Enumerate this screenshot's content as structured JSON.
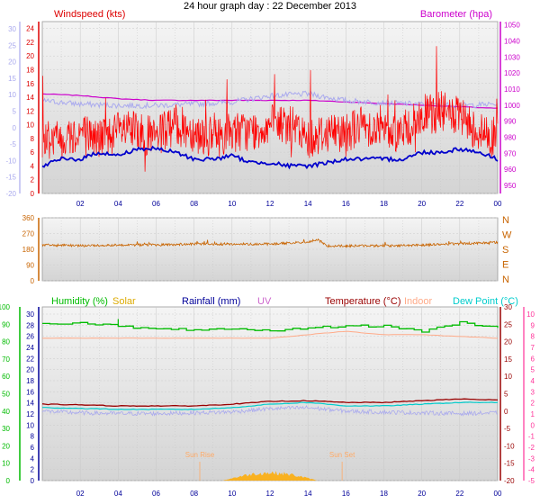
{
  "title": "24 hour graph day : 22 December 2013",
  "colors": {
    "wind": "#dd0000",
    "baro": "#cc00cc",
    "dir": "#c86400",
    "humidity": "#00bb00",
    "solar": "#ffaa00",
    "rain": "#000099",
    "uv": "#cc66cc",
    "temp": "#990000",
    "indoor": "#ffaa88",
    "dew": "#00cccc",
    "lavender": "#aaaaee",
    "gust": "#ff0000",
    "avg": "#0000cc",
    "pink": "#ff3399"
  },
  "labels": {
    "wind": "Windspeed (kts)",
    "baro": "Barometer (hpa)",
    "humidity": "Humidity (%)",
    "solar": "Solar",
    "rain": "Rainfall (mm)",
    "uv": "UV",
    "temp": "Temperature (°C)",
    "indoor": "Indoor",
    "dew": "Dew Point (°C)",
    "sunrise": "Sun Rise",
    "sunset": "Sun Set"
  },
  "chart_data": [
    {
      "type": "line",
      "panel": "wind-barometer",
      "x_ticks": [
        "02",
        "04",
        "06",
        "08",
        "10",
        "12",
        "14",
        "16",
        "18",
        "20",
        "22",
        "00"
      ],
      "axes": {
        "wind_kts": {
          "ticks": [
            0,
            2,
            4,
            6,
            8,
            10,
            12,
            14,
            16,
            18,
            20,
            22,
            24
          ],
          "ylim": [
            0,
            25
          ]
        },
        "outer_left": {
          "ticks": [
            -20,
            -15,
            -10,
            -5,
            0,
            5,
            10,
            15,
            20,
            25,
            30
          ]
        },
        "barometer_hpa": {
          "ticks": [
            950,
            960,
            970,
            980,
            990,
            1000,
            1010,
            1020,
            1030,
            1040,
            1050
          ],
          "ylim": [
            945,
            1052
          ]
        }
      },
      "series": [
        {
          "name": "Windspeed (kts)",
          "key": "gust",
          "x": [
            0,
            1,
            2,
            3,
            4,
            5,
            6,
            7,
            8,
            9,
            10,
            11,
            12,
            13,
            14,
            15,
            16,
            17,
            18,
            19,
            20,
            21,
            22,
            23,
            24
          ],
          "y": [
            8,
            8,
            9,
            8,
            9,
            9,
            8,
            10,
            9,
            8,
            9,
            9,
            10,
            10,
            8,
            9,
            9,
            10,
            9,
            9,
            11,
            12,
            11,
            9,
            8
          ]
        },
        {
          "name": "avg",
          "key": "avg",
          "x": [
            0,
            1,
            2,
            3,
            4,
            5,
            6,
            7,
            8,
            9,
            10,
            11,
            12,
            13,
            14,
            15,
            16,
            17,
            18,
            19,
            20,
            21,
            22,
            23,
            24
          ],
          "y": [
            4,
            5,
            5,
            6,
            5.5,
            6.5,
            6.5,
            6,
            5,
            5,
            5.5,
            4.5,
            4.5,
            4,
            4,
            4.5,
            5,
            5,
            5,
            5,
            6,
            6,
            6.5,
            6,
            5
          ]
        },
        {
          "name": "Barometer (hpa)",
          "key": "baro",
          "x": [
            0,
            2,
            4,
            6,
            8,
            10,
            12,
            14,
            16,
            18,
            20,
            22,
            24
          ],
          "y": [
            1007,
            1006,
            1004,
            1003,
            1003,
            1003,
            1003,
            1003,
            1002,
            1001,
            1000,
            999,
            998
          ]
        },
        {
          "name": "lavender",
          "key": "lavender",
          "x": [
            0,
            2,
            4,
            6,
            8,
            10,
            12,
            14,
            16,
            18,
            20,
            22,
            24
          ],
          "y": [
            13.5,
            13,
            12.8,
            12.8,
            13,
            13.3,
            14.2,
            14.5,
            13.5,
            13.2,
            13,
            12.8,
            13
          ]
        }
      ]
    },
    {
      "type": "line",
      "panel": "wind-direction",
      "axes": {
        "dir": {
          "ticks": [
            0,
            90,
            180,
            270,
            360
          ],
          "ylim": [
            0,
            360
          ]
        }
      },
      "compass": [
        "N",
        "W",
        "S",
        "E",
        "N"
      ],
      "series": [
        {
          "name": "direction",
          "key": "dir",
          "x": [
            0,
            2,
            4,
            6,
            8,
            10,
            12,
            14,
            14.5,
            15,
            16,
            18,
            20,
            22,
            24
          ],
          "y": [
            205,
            200,
            205,
            205,
            210,
            210,
            210,
            222,
            235,
            200,
            200,
            200,
            205,
            212,
            220
          ]
        }
      ]
    },
    {
      "type": "line",
      "panel": "humidity-temperature",
      "axes": {
        "humidity_pct": {
          "ticks": [
            0,
            10,
            20,
            30,
            40,
            50,
            60,
            70,
            80,
            90,
            100
          ]
        },
        "rain_mm": {
          "ticks": [
            0,
            2,
            4,
            6,
            8,
            10,
            12,
            14,
            16,
            18,
            20,
            22,
            24,
            26,
            28,
            30
          ]
        },
        "temperature_c": {
          "ticks": [
            -20,
            -15,
            -10,
            -5,
            0,
            5,
            10,
            15,
            20,
            25,
            30
          ]
        },
        "dew_point_c": {
          "ticks": [
            -5,
            -4,
            -3,
            -2,
            -1,
            0,
            1,
            2,
            3,
            4,
            5,
            6,
            7,
            8,
            9,
            10
          ]
        }
      },
      "series": [
        {
          "name": "Humidity (%)",
          "key": "humidity",
          "x": [
            0,
            2,
            4,
            6,
            8,
            10,
            12,
            14,
            16,
            18,
            20,
            22,
            24
          ],
          "y": [
            90,
            91,
            89,
            87,
            87,
            87,
            86,
            88,
            89,
            89,
            86,
            91,
            88
          ]
        },
        {
          "name": "Indoor",
          "key": "indoor",
          "x": [
            0,
            4,
            8,
            10,
            12,
            14,
            16,
            18,
            20,
            24
          ],
          "y": [
            21,
            21,
            21,
            21,
            21,
            22,
            23,
            22,
            22,
            21
          ]
        },
        {
          "name": "Temperature (°C)",
          "key": "temp",
          "x": [
            0,
            2,
            4,
            6,
            8,
            10,
            12,
            14,
            16,
            18,
            20,
            22,
            24
          ],
          "y": [
            2,
            1.8,
            1.5,
            1.5,
            1.5,
            2,
            2.8,
            3,
            2.5,
            2.5,
            3,
            3.5,
            3.2
          ]
        },
        {
          "name": "Dew Point (°C)",
          "key": "dew",
          "x": [
            0,
            2,
            4,
            6,
            8,
            10,
            12,
            14,
            16,
            18,
            20,
            22,
            24
          ],
          "y": [
            1,
            0.8,
            0.5,
            0.5,
            0.5,
            1,
            2,
            2.5,
            1.5,
            1.5,
            2,
            2.5,
            2.5
          ]
        }
      ],
      "sunrise_hour": 8.3,
      "sunset_hour": 15.8
    }
  ]
}
